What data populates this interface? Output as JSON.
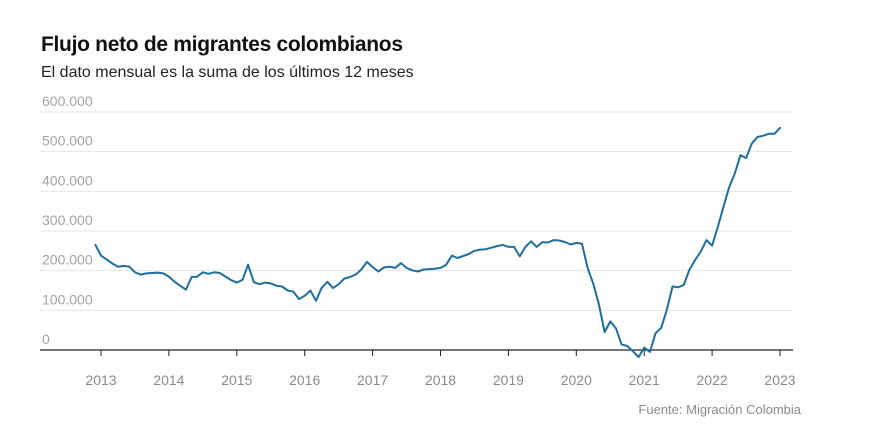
{
  "chart_data": {
    "type": "line",
    "title": "Flujo neto de migrantes colombianos",
    "subtitle": "El dato mensual es la suma de los últimos 12 meses",
    "source": "Fuente: Migración Colombia",
    "ylim": [
      0,
      600000
    ],
    "y_ticks": [
      0,
      100000,
      200000,
      300000,
      400000,
      500000,
      600000
    ],
    "y_tick_labels": [
      "0",
      "100.000",
      "200.000",
      "300.000",
      "400.000",
      "500.000",
      "600.000"
    ],
    "x_ticks": [
      "2013",
      "2014",
      "2015",
      "2016",
      "2017",
      "2018",
      "2019",
      "2020",
      "2021",
      "2022",
      "2023"
    ],
    "grid": true,
    "line_color": "#1f6e9c",
    "x_start": 2012.917,
    "x_step_months": 1,
    "values": [
      265000,
      238000,
      228000,
      218000,
      210000,
      212000,
      210000,
      196000,
      190000,
      193000,
      194000,
      195000,
      193000,
      185000,
      172000,
      162000,
      152000,
      184000,
      185000,
      196000,
      192000,
      196000,
      194000,
      185000,
      176000,
      170000,
      177000,
      215000,
      171000,
      166000,
      170000,
      168000,
      162000,
      160000,
      150000,
      147000,
      128000,
      137000,
      150000,
      124000,
      157000,
      172000,
      156000,
      166000,
      180000,
      184000,
      190000,
      203000,
      222000,
      209000,
      198000,
      208000,
      210000,
      207000,
      219000,
      207000,
      201000,
      198000,
      203000,
      204000,
      205000,
      207000,
      215000,
      238000,
      232000,
      237000,
      242000,
      250000,
      253000,
      254000,
      258000,
      262000,
      265000,
      260000,
      260000,
      236000,
      260000,
      274000,
      260000,
      272000,
      271000,
      277000,
      276000,
      272000,
      266000,
      270000,
      268000,
      207000,
      167000,
      114000,
      45000,
      72000,
      55000,
      14000,
      10000,
      -3000,
      -18000,
      6000,
      -5000,
      42000,
      56000,
      102000,
      160000,
      158000,
      164000,
      203000,
      227000,
      248000,
      277000,
      263000,
      310000,
      360000,
      410000,
      445000,
      491000,
      484000,
      520000,
      537000,
      540000,
      545000,
      545000,
      560000
    ]
  }
}
